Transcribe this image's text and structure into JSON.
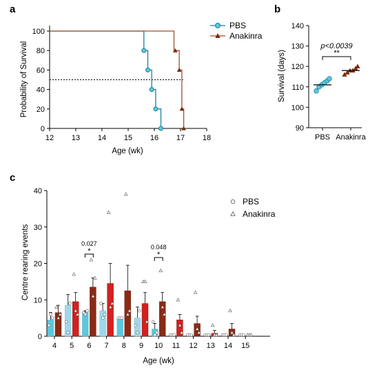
{
  "colors": {
    "pbs": "#5bc8dc",
    "pbs_dark": "#1a7fa0",
    "anakinra": "#a0522d",
    "anakinra_dark": "#7a2e10",
    "anakinra_bar_dark": "#8b2a14",
    "anakinra_bar_red": "#d42020",
    "pbs_bar_light": "#9ed8ec",
    "axis": "#000000"
  },
  "panels": {
    "a": "a",
    "b": "b",
    "c": "c"
  },
  "chart_data": [
    {
      "id": "a",
      "type": "line",
      "subtype": "kaplan-meier",
      "xlabel": "Age (wk)",
      "ylabel": "Probability of Survival",
      "xlim": [
        12,
        18
      ],
      "ylim": [
        0,
        100
      ],
      "xticks": [
        12,
        13,
        14,
        15,
        16,
        17,
        18
      ],
      "yticks": [
        0,
        20,
        40,
        60,
        80,
        100
      ],
      "reference_line": 50,
      "legend": [
        "PBS",
        "Anakinra"
      ],
      "legend_position": "top-right",
      "series": [
        {
          "name": "PBS",
          "steps": [
            [
              12,
              100
            ],
            [
              15.6,
              100
            ],
            [
              15.6,
              80
            ],
            [
              15.75,
              80
            ],
            [
              15.75,
              60
            ],
            [
              15.9,
              60
            ],
            [
              15.9,
              40
            ],
            [
              16.05,
              40
            ],
            [
              16.05,
              20
            ],
            [
              16.25,
              20
            ],
            [
              16.25,
              0
            ]
          ],
          "markers": [
            [
              15.6,
              80
            ],
            [
              15.75,
              60
            ],
            [
              15.9,
              40
            ],
            [
              16.05,
              20
            ],
            [
              16.25,
              0
            ]
          ]
        },
        {
          "name": "Anakinra",
          "steps": [
            [
              12,
              100
            ],
            [
              16.75,
              100
            ],
            [
              16.75,
              80
            ],
            [
              16.95,
              80
            ],
            [
              16.95,
              60
            ],
            [
              17.05,
              60
            ],
            [
              17.05,
              20
            ],
            [
              17.12,
              20
            ],
            [
              17.12,
              0
            ]
          ],
          "markers": [
            [
              16.8,
              80
            ],
            [
              16.95,
              60
            ],
            [
              17.05,
              20
            ],
            [
              17.12,
              0
            ]
          ]
        }
      ]
    },
    {
      "id": "b",
      "type": "scatter",
      "ylabel": "Survival (days)",
      "categories": [
        "PBS",
        "Anakinra"
      ],
      "ylim": [
        90,
        140
      ],
      "yticks": [
        90,
        100,
        110,
        120,
        130,
        140
      ],
      "annotation_p": "p<0.0039",
      "annotation_stars": "**",
      "series": [
        {
          "name": "PBS",
          "mean": 111,
          "values": [
            108,
            110,
            111,
            112,
            113,
            114
          ]
        },
        {
          "name": "Anakinra",
          "mean": 118,
          "values": [
            116,
            117,
            118,
            118,
            119,
            120
          ]
        }
      ]
    },
    {
      "id": "c",
      "type": "bar",
      "xlabel": "Age (wk)",
      "ylabel": "Centre rearing events",
      "categories": [
        "4",
        "5",
        "6",
        "7",
        "8",
        "9",
        "10",
        "11",
        "12",
        "13",
        "14",
        "15"
      ],
      "ylim": [
        0,
        40
      ],
      "yticks": [
        0,
        10,
        20,
        30,
        40
      ],
      "legend": [
        "PBS",
        "Anakinra"
      ],
      "legend_position": "top-right",
      "series": [
        {
          "name": "PBS",
          "values": [
            4.5,
            8.5,
            6.5,
            7,
            5,
            5,
            2,
            0,
            0,
            0,
            0,
            0
          ],
          "errors": [
            2,
            3,
            0.5,
            2,
            0,
            3,
            1.5,
            0,
            0,
            0,
            0,
            0
          ]
        },
        {
          "name": "Anakinra",
          "values": [
            6.5,
            9.5,
            13.5,
            14.5,
            12.5,
            9,
            9.5,
            4.5,
            3.5,
            0.8,
            2,
            0
          ],
          "errors": [
            2,
            2.5,
            2.5,
            5.5,
            7,
            3,
            2.5,
            1.5,
            2,
            0.8,
            1.5,
            0
          ]
        }
      ],
      "points": {
        "PBS": [
          [
            3,
            6,
            5
          ],
          [
            4,
            1,
            9
          ],
          [
            6.5,
            6,
            7
          ],
          [
            9,
            5,
            6
          ],
          [
            5,
            5,
            5
          ],
          [
            3,
            1,
            7
          ],
          [
            4,
            0,
            1
          ],
          [
            0,
            0,
            0
          ],
          [
            0,
            0,
            0
          ],
          [
            0,
            0,
            0
          ],
          [
            0,
            0,
            0
          ],
          [
            0,
            0,
            0
          ]
        ],
        "Anakinra": [
          [
            8,
            5,
            6
          ],
          [
            17,
            7,
            6
          ],
          [
            21,
            11,
            16
          ],
          [
            34,
            8,
            9
          ],
          [
            39,
            6,
            7
          ],
          [
            15,
            15,
            4
          ],
          [
            18,
            8,
            6
          ],
          [
            10,
            3,
            1
          ],
          [
            12,
            2,
            1
          ],
          [
            3,
            0,
            0
          ],
          [
            7,
            1,
            0
          ],
          [
            0,
            0,
            0
          ]
        ]
      },
      "comparisons": [
        {
          "category": "6",
          "p": "0.027",
          "stars": "*"
        },
        {
          "category": "10",
          "p": "0.048",
          "stars": "*"
        }
      ]
    }
  ]
}
